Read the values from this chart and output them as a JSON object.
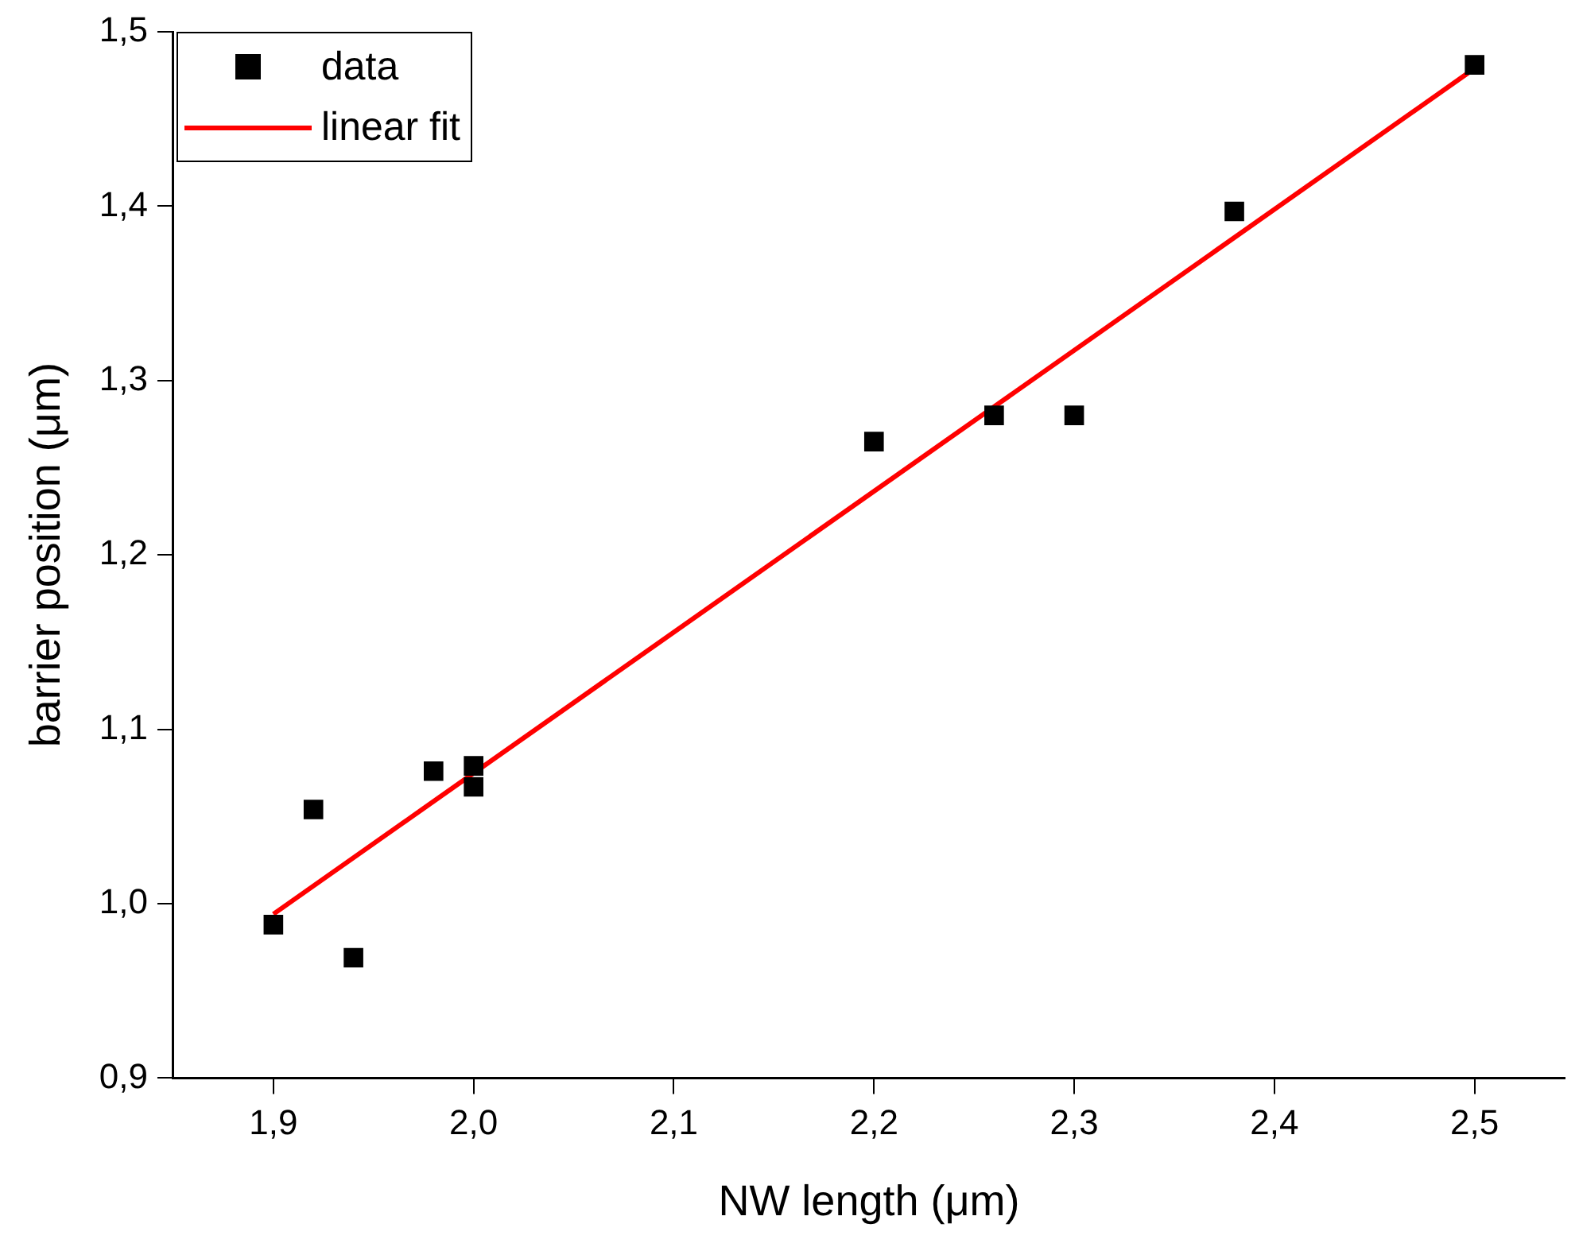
{
  "chart_data": {
    "type": "scatter",
    "xlabel": "NW length (μm)",
    "ylabel": "barrier position (μm)",
    "xlim": [
      1.85,
      2.545
    ],
    "ylim": [
      0.9,
      1.5
    ],
    "xticks": [
      {
        "value": 1.9,
        "label": "1,9"
      },
      {
        "value": 2.0,
        "label": "2,0"
      },
      {
        "value": 2.1,
        "label": "2,1"
      },
      {
        "value": 2.2,
        "label": "2,2"
      },
      {
        "value": 2.3,
        "label": "2,3"
      },
      {
        "value": 2.4,
        "label": "2,4"
      },
      {
        "value": 2.5,
        "label": "2,5"
      }
    ],
    "yticks": [
      {
        "value": 0.9,
        "label": "0,9"
      },
      {
        "value": 1.0,
        "label": "1,0"
      },
      {
        "value": 1.1,
        "label": "1,1"
      },
      {
        "value": 1.2,
        "label": "1,2"
      },
      {
        "value": 1.3,
        "label": "1,3"
      },
      {
        "value": 1.4,
        "label": "1,4"
      },
      {
        "value": 1.5,
        "label": "1,5"
      }
    ],
    "grid": false,
    "legend": "top left",
    "series": [
      {
        "name": "data",
        "type": "scatter",
        "marker": "square",
        "color": "#000000",
        "x": [
          1.9,
          1.92,
          1.94,
          1.98,
          2.0,
          2.0,
          2.2,
          2.26,
          2.3,
          2.38,
          2.5
        ],
        "values": [
          0.988,
          1.054,
          0.969,
          1.076,
          1.079,
          1.067,
          1.265,
          1.28,
          1.28,
          1.397,
          1.481
        ]
      },
      {
        "name": "linear fit",
        "type": "line",
        "color": "#ff0000",
        "marker": "none",
        "line_style": "solid",
        "x": [
          1.9,
          2.5
        ],
        "values": [
          0.994,
          1.479
        ]
      }
    ]
  }
}
